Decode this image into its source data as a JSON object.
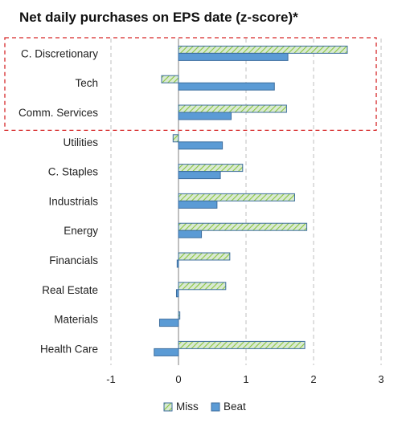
{
  "chart_data": {
    "type": "bar",
    "orientation": "horizontal",
    "title": "Net daily purchases on EPS date (z-score)*",
    "xlabel": "",
    "ylabel": "",
    "categories": [
      "C. Discretionary",
      "Tech",
      "Comm. Services",
      "Utilities",
      "C. Staples",
      "Industrials",
      "Energy",
      "Financials",
      "Real Estate",
      "Materials",
      "Health Care"
    ],
    "series": [
      {
        "name": "Miss",
        "values": [
          2.5,
          -0.25,
          1.6,
          -0.08,
          0.95,
          1.72,
          1.9,
          0.76,
          0.7,
          0.02,
          1.87
        ]
      },
      {
        "name": "Beat",
        "values": [
          1.62,
          1.42,
          0.78,
          0.65,
          0.62,
          0.57,
          0.34,
          -0.02,
          -0.03,
          -0.28,
          -0.36
        ]
      }
    ],
    "xlim": [
      -1,
      3
    ],
    "xticks": [
      "-1",
      "0",
      "1",
      "2",
      "3"
    ],
    "grid": "vertical dashed",
    "legend": "bottom",
    "highlight_categories": [
      "C. Discretionary",
      "Tech",
      "Comm. Services"
    ],
    "colors": {
      "miss_fill": "#d9ead3",
      "miss_hatch": "#8cc63f",
      "beat_fill": "#5b9bd5",
      "bar_stroke": "#3d6e9e",
      "highlight_box": "#d62728",
      "grid": "#bfbfbf",
      "axis": "#7f7f7f"
    }
  }
}
